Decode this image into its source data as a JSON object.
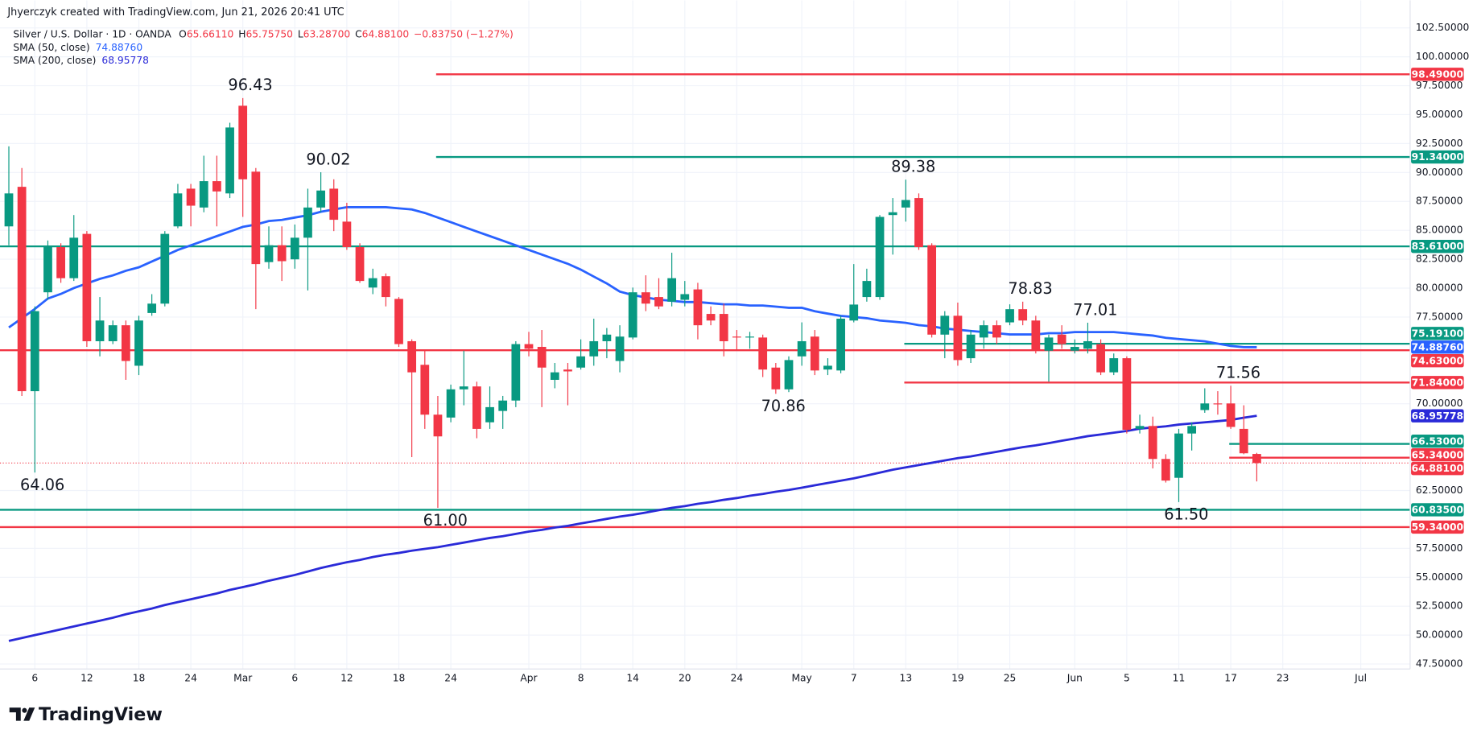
{
  "header": {
    "attribution": "Jhyerczyk created with TradingView.com, Jun 21, 2026 20:41 UTC",
    "symbol": "Silver / U.S. Dollar · 1D · OANDA",
    "ohlc": [
      {
        "key": "O",
        "value": "65.66110"
      },
      {
        "key": "H",
        "value": "65.75750"
      },
      {
        "key": "L",
        "value": "63.28700"
      },
      {
        "key": "C",
        "value": "64.88100"
      }
    ],
    "change": "−0.83750 (−1.27%)"
  },
  "logo": "TradingView",
  "chart_data": {
    "type": "candlestick",
    "categories": [
      null,
      null,
      "6",
      null,
      null,
      null,
      "12",
      null,
      null,
      null,
      "18",
      null,
      null,
      null,
      "24",
      null,
      null,
      null,
      "Mar",
      null,
      null,
      null,
      "6",
      null,
      null,
      null,
      "12",
      null,
      null,
      null,
      "18",
      null,
      null,
      null,
      "24",
      null,
      null,
      null,
      null,
      null,
      "Apr",
      null,
      null,
      null,
      "8",
      null,
      null,
      null,
      "14",
      null,
      null,
      null,
      "20",
      null,
      null,
      null,
      "24",
      null,
      null,
      null,
      null,
      "May",
      null,
      null,
      null,
      "7",
      null,
      null,
      null,
      "13",
      null,
      null,
      null,
      "19",
      null,
      null,
      null,
      "25",
      null,
      null,
      null,
      null,
      "Jun",
      null,
      null,
      null,
      "5",
      null,
      null,
      null,
      "11",
      null,
      null,
      null,
      "17",
      null,
      null,
      null,
      "23",
      null,
      null,
      null,
      null,
      null,
      "Jul",
      null,
      null,
      null
    ],
    "open": [
      85.34,
      88.76,
      71.09,
      79.64,
      83.55,
      80.86,
      84.69,
      75.41,
      75.41,
      76.79,
      73.29,
      77.85,
      78.66,
      85.34,
      88.6,
      86.97,
      89.25,
      88.19,
      95.77,
      90.07,
      82.25,
      83.71,
      82.49,
      84.36,
      86.97,
      88.6,
      85.75,
      83.55,
      80.05,
      81.03,
      79.07,
      75.41,
      73.37,
      69.06,
      68.81,
      71.25,
      71.5,
      68.4,
      69.38,
      70.28,
      75.16,
      74.92,
      72.07,
      72.96,
      73.13,
      74.1,
      75.41,
      73.7,
      75.73,
      79.64,
      79.23,
      78.83,
      78.99,
      79.89,
      77.77,
      77.77,
      75.81,
      75.73,
      75.73,
      73.13,
      71.25,
      74.1,
      75.81,
      72.96,
      72.88,
      77.2,
      79.23,
      79.23,
      86.32,
      86.97,
      87.79,
      83.71,
      75.98,
      77.61,
      73.94,
      75.73,
      76.79,
      77.04,
      78.18,
      77.2,
      74.59,
      75.98,
      74.59,
      74.76,
      75.16,
      72.72,
      73.94,
      67.83,
      68.08,
      65.23,
      63.6,
      67.43,
      69.46,
      70.03,
      70.03,
      67.83,
      65.6611,
      null,
      null,
      null,
      null,
      null,
      null,
      null,
      null,
      null,
      null,
      null
    ],
    "high": [
      92.26,
      90.39,
      78.42,
      84.12,
      83.88,
      86.32,
      84.93,
      79.23,
      77.2,
      77.2,
      77.61,
      79.48,
      84.93,
      89.01,
      89.01,
      91.45,
      91.45,
      94.3,
      96.43,
      90.39,
      85.34,
      85.34,
      85.5,
      88.6,
      90.02,
      89.41,
      87.38,
      83.88,
      81.68,
      81.27,
      79.23,
      75.57,
      74.59,
      70.68,
      71.66,
      74.59,
      71.91,
      71.5,
      70.68,
      75.41,
      76.22,
      76.38,
      73.53,
      73.53,
      75.57,
      77.36,
      76.55,
      76.79,
      80.05,
      81.11,
      80.86,
      83.06,
      80.62,
      80.46,
      78.42,
      78.66,
      76.38,
      76.22,
      75.98,
      73.53,
      74.1,
      77.04,
      76.38,
      73.94,
      77.61,
      82.08,
      81.68,
      86.32,
      87.79,
      89.38,
      88.19,
      83.88,
      78.01,
      78.75,
      76.38,
      77.2,
      77.2,
      78.6,
      78.83,
      77.61,
      75.98,
      76.79,
      75.57,
      77.01,
      75.57,
      74.35,
      74.1,
      69.06,
      68.89,
      65.64,
      67.83,
      68.4,
      71.34,
      71.09,
      71.56,
      69.87,
      65.7575,
      null,
      null,
      null,
      null,
      null,
      null,
      null,
      null,
      null,
      null,
      null
    ],
    "low": [
      83.71,
      70.68,
      64.06,
      78.99,
      80.46,
      80.62,
      74.92,
      74.1,
      75.16,
      72.07,
      72.48,
      77.61,
      78.42,
      85.18,
      85.34,
      86.56,
      85.34,
      87.79,
      86.16,
      78.18,
      81.68,
      80.62,
      81.68,
      79.8,
      86.56,
      84.93,
      83.31,
      80.46,
      79.48,
      78.42,
      74.92,
      65.39,
      67.83,
      61.0,
      68.4,
      69.87,
      67.02,
      67.83,
      67.83,
      69.71,
      74.1,
      69.71,
      71.34,
      69.87,
      72.96,
      73.29,
      73.94,
      72.72,
      75.57,
      78.01,
      78.18,
      78.42,
      78.42,
      75.57,
      76.79,
      74.1,
      74.59,
      74.76,
      72.31,
      70.86,
      71.01,
      73.29,
      72.48,
      72.48,
      72.64,
      77.04,
      78.83,
      78.99,
      82.9,
      85.75,
      83.31,
      75.73,
      73.94,
      73.29,
      73.53,
      74.76,
      75.16,
      76.79,
      76.79,
      74.35,
      71.91,
      74.76,
      74.35,
      74.35,
      72.48,
      72.48,
      67.43,
      67.43,
      64.41,
      63.19,
      61.5,
      65.96,
      69.22,
      69.06,
      67.83,
      65.64,
      63.287,
      null,
      null,
      null,
      null,
      null,
      null,
      null,
      null,
      null,
      null,
      null
    ],
    "close": [
      88.19,
      71.09,
      78.01,
      83.55,
      80.86,
      84.36,
      75.41,
      77.2,
      76.79,
      73.7,
      77.2,
      78.66,
      84.69,
      88.19,
      87.13,
      89.25,
      88.36,
      93.89,
      89.41,
      82.08,
      83.71,
      82.33,
      84.36,
      86.97,
      88.44,
      85.91,
      83.55,
      80.62,
      80.86,
      79.23,
      75.16,
      72.72,
      69.06,
      67.18,
      71.25,
      71.5,
      67.83,
      69.71,
      70.28,
      75.16,
      74.76,
      73.13,
      72.72,
      72.8,
      74.1,
      75.41,
      75.98,
      75.81,
      79.64,
      78.66,
      78.42,
      80.86,
      79.48,
      76.79,
      77.2,
      75.41,
      75.73,
      75.81,
      72.96,
      71.25,
      73.78,
      75.41,
      72.88,
      73.29,
      77.36,
      78.58,
      80.62,
      86.16,
      86.56,
      87.62,
      83.55,
      75.98,
      77.61,
      73.78,
      75.98,
      76.79,
      75.73,
      78.18,
      77.2,
      74.59,
      75.73,
      75.16,
      74.92,
      75.41,
      72.72,
      73.94,
      67.75,
      68.08,
      65.23,
      63.36,
      67.43,
      68.08,
      70.03,
      70.0,
      68.0,
      65.72,
      64.881,
      null,
      null,
      null,
      null,
      null,
      null,
      null,
      null,
      null,
      null,
      null
    ],
    "up_color": "#089981",
    "down_color": "#f23645",
    "series": [
      {
        "name": "SMA (50, close)",
        "last_label": "74.88760",
        "color": "#2962ff",
        "values": [
          76.6,
          77.4,
          78.2,
          79.1,
          79.5,
          80.0,
          80.4,
          80.8,
          81.1,
          81.5,
          81.8,
          82.3,
          82.8,
          83.3,
          83.7,
          84.1,
          84.5,
          84.9,
          85.3,
          85.5,
          85.8,
          85.9,
          86.1,
          86.3,
          86.6,
          86.8,
          87.0,
          87.0,
          87.0,
          87.0,
          86.9,
          86.8,
          86.5,
          86.1,
          85.7,
          85.3,
          84.9,
          84.5,
          84.1,
          83.7,
          83.3,
          82.9,
          82.5,
          82.1,
          81.6,
          81.0,
          80.4,
          79.7,
          79.4,
          79.2,
          79.0,
          78.9,
          78.8,
          78.8,
          78.7,
          78.6,
          78.6,
          78.5,
          78.5,
          78.4,
          78.3,
          78.3,
          78.0,
          77.8,
          77.6,
          77.5,
          77.4,
          77.2,
          77.1,
          77.0,
          76.8,
          76.7,
          76.5,
          76.4,
          76.3,
          76.2,
          76.1,
          76.0,
          76.0,
          76.0,
          76.1,
          76.1,
          76.2,
          76.2,
          76.2,
          76.2,
          76.1,
          76.0,
          75.9,
          75.7,
          75.6,
          75.5,
          75.4,
          75.2,
          75.0,
          74.9,
          74.8876,
          null,
          null,
          null,
          null,
          null,
          null,
          null,
          null,
          null,
          null,
          null
        ]
      },
      {
        "name": "SMA (200, close)",
        "last_label": "68.95778",
        "color": "#2a2ad8",
        "values": [
          49.5,
          49.75,
          50.0,
          50.25,
          50.5,
          50.75,
          51.0,
          51.25,
          51.5,
          51.8,
          52.05,
          52.3,
          52.6,
          52.85,
          53.1,
          53.35,
          53.6,
          53.9,
          54.15,
          54.4,
          54.7,
          54.95,
          55.2,
          55.5,
          55.8,
          56.05,
          56.3,
          56.5,
          56.75,
          56.95,
          57.1,
          57.3,
          57.45,
          57.6,
          57.8,
          58.0,
          58.2,
          58.4,
          58.55,
          58.75,
          58.95,
          59.1,
          59.3,
          59.45,
          59.65,
          59.85,
          60.05,
          60.25,
          60.4,
          60.6,
          60.8,
          61.0,
          61.15,
          61.35,
          61.5,
          61.7,
          61.85,
          62.05,
          62.2,
          62.4,
          62.55,
          62.75,
          62.95,
          63.15,
          63.35,
          63.55,
          63.8,
          64.05,
          64.3,
          64.5,
          64.7,
          64.9,
          65.1,
          65.3,
          65.45,
          65.65,
          65.85,
          66.05,
          66.25,
          66.4,
          66.6,
          66.8,
          67.0,
          67.2,
          67.35,
          67.5,
          67.65,
          67.85,
          67.95,
          68.05,
          68.2,
          68.3,
          68.4,
          68.5,
          68.6,
          68.8,
          68.95778,
          null,
          null,
          null,
          null,
          null,
          null,
          null,
          null,
          null,
          null,
          null
        ]
      }
    ],
    "levels": [
      {
        "value": 98.49,
        "label": "98.49000",
        "color": "#f23645"
      },
      {
        "value": 91.34,
        "label": "91.34000",
        "color": "#089981"
      },
      {
        "value": 83.61,
        "label": "83.61000",
        "color": "#089981"
      },
      {
        "value": 75.191,
        "label": "75.19100",
        "color": "#089981"
      },
      {
        "value": 74.63,
        "label": "74.63000",
        "color": "#f23645"
      },
      {
        "value": 71.84,
        "label": "71.84000",
        "color": "#f23645"
      },
      {
        "value": 66.53,
        "label": "66.53000",
        "color": "#089981"
      },
      {
        "value": 65.34,
        "label": "65.34000",
        "color": "#f23645"
      },
      {
        "value": 60.835,
        "label": "60.83500",
        "color": "#089981"
      },
      {
        "value": 59.34,
        "label": "59.34000",
        "color": "#f23645"
      }
    ],
    "annotations": [
      {
        "value": 96.43,
        "label": "96.43"
      },
      {
        "value": 90.02,
        "label": "90.02"
      },
      {
        "value": 89.38,
        "label": "89.38"
      },
      {
        "value": 78.83,
        "label": "78.83"
      },
      {
        "value": 77.01,
        "label": "77.01"
      },
      {
        "value": 71.56,
        "label": "71.56"
      },
      {
        "value": 70.86,
        "label": "70.86"
      },
      {
        "value": 64.06,
        "label": "64.06"
      },
      {
        "value": 61.0,
        "label": "61.00"
      },
      {
        "value": 61.5,
        "label": "61.50"
      }
    ],
    "ylim": [
      47.07,
      104.89
    ],
    "yticks": [
      {
        "value": 102.5,
        "label": "102.50000"
      },
      {
        "value": 100,
        "label": "100.00000"
      },
      {
        "value": 97.5,
        "label": "97.50000"
      },
      {
        "value": 95,
        "label": "95.00000"
      },
      {
        "value": 92.5,
        "label": "92.50000"
      },
      {
        "value": 90,
        "label": "90.00000"
      },
      {
        "value": 87.5,
        "label": "87.50000"
      },
      {
        "value": 85,
        "label": "85.00000"
      },
      {
        "value": 82.5,
        "label": "82.50000"
      },
      {
        "value": 80,
        "label": "80.00000"
      },
      {
        "value": 77.5,
        "label": "77.50000"
      },
      {
        "value": 70,
        "label": "70.00000"
      },
      {
        "value": 62.5,
        "label": "62.50000"
      },
      {
        "value": 57.5,
        "label": "57.50000"
      },
      {
        "value": 55,
        "label": "55.00000"
      },
      {
        "value": 52.5,
        "label": "52.50000"
      },
      {
        "value": 50,
        "label": "50.00000"
      },
      {
        "value": 47.5,
        "label": "47.50000"
      }
    ],
    "grid": true
  }
}
